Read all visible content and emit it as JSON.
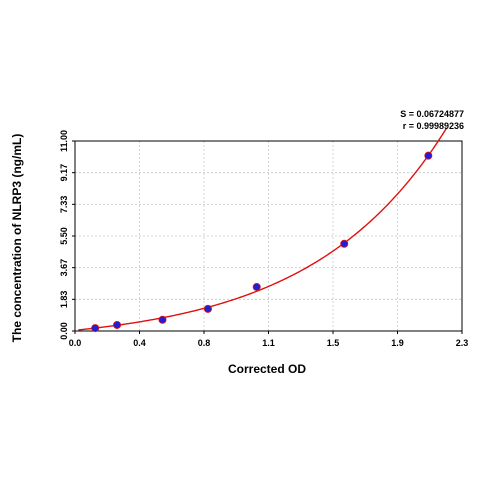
{
  "chart_data": {
    "type": "scatter",
    "xlabel": "Corrected OD",
    "ylabel": "The concentration of NLRP3 (ng/mL)",
    "xlim": [
      0,
      2.3
    ],
    "ylim": [
      0,
      11.0
    ],
    "x_ticks": [
      "0.0",
      "0.4",
      "0.8",
      "1.1",
      "1.5",
      "1.9",
      "2.3"
    ],
    "y_ticks": [
      "0.00",
      "1.83",
      "3.67",
      "5.50",
      "7.33",
      "9.17",
      "11.00"
    ],
    "grid": true,
    "stats": {
      "s": "S = 0.06724877",
      "r": "r = 0.99989236"
    },
    "series": [
      {
        "points": [
          {
            "x": 0.12,
            "y": 0.17
          },
          {
            "x": 0.25,
            "y": 0.35
          },
          {
            "x": 0.52,
            "y": 0.65
          },
          {
            "x": 0.79,
            "y": 1.28
          },
          {
            "x": 1.08,
            "y": 2.55
          },
          {
            "x": 1.6,
            "y": 5.05
          },
          {
            "x": 2.1,
            "y": 10.15
          }
        ],
        "marker_color": "#1f1fd6",
        "fit_color": "#e01010",
        "fit": "curve"
      }
    ]
  }
}
